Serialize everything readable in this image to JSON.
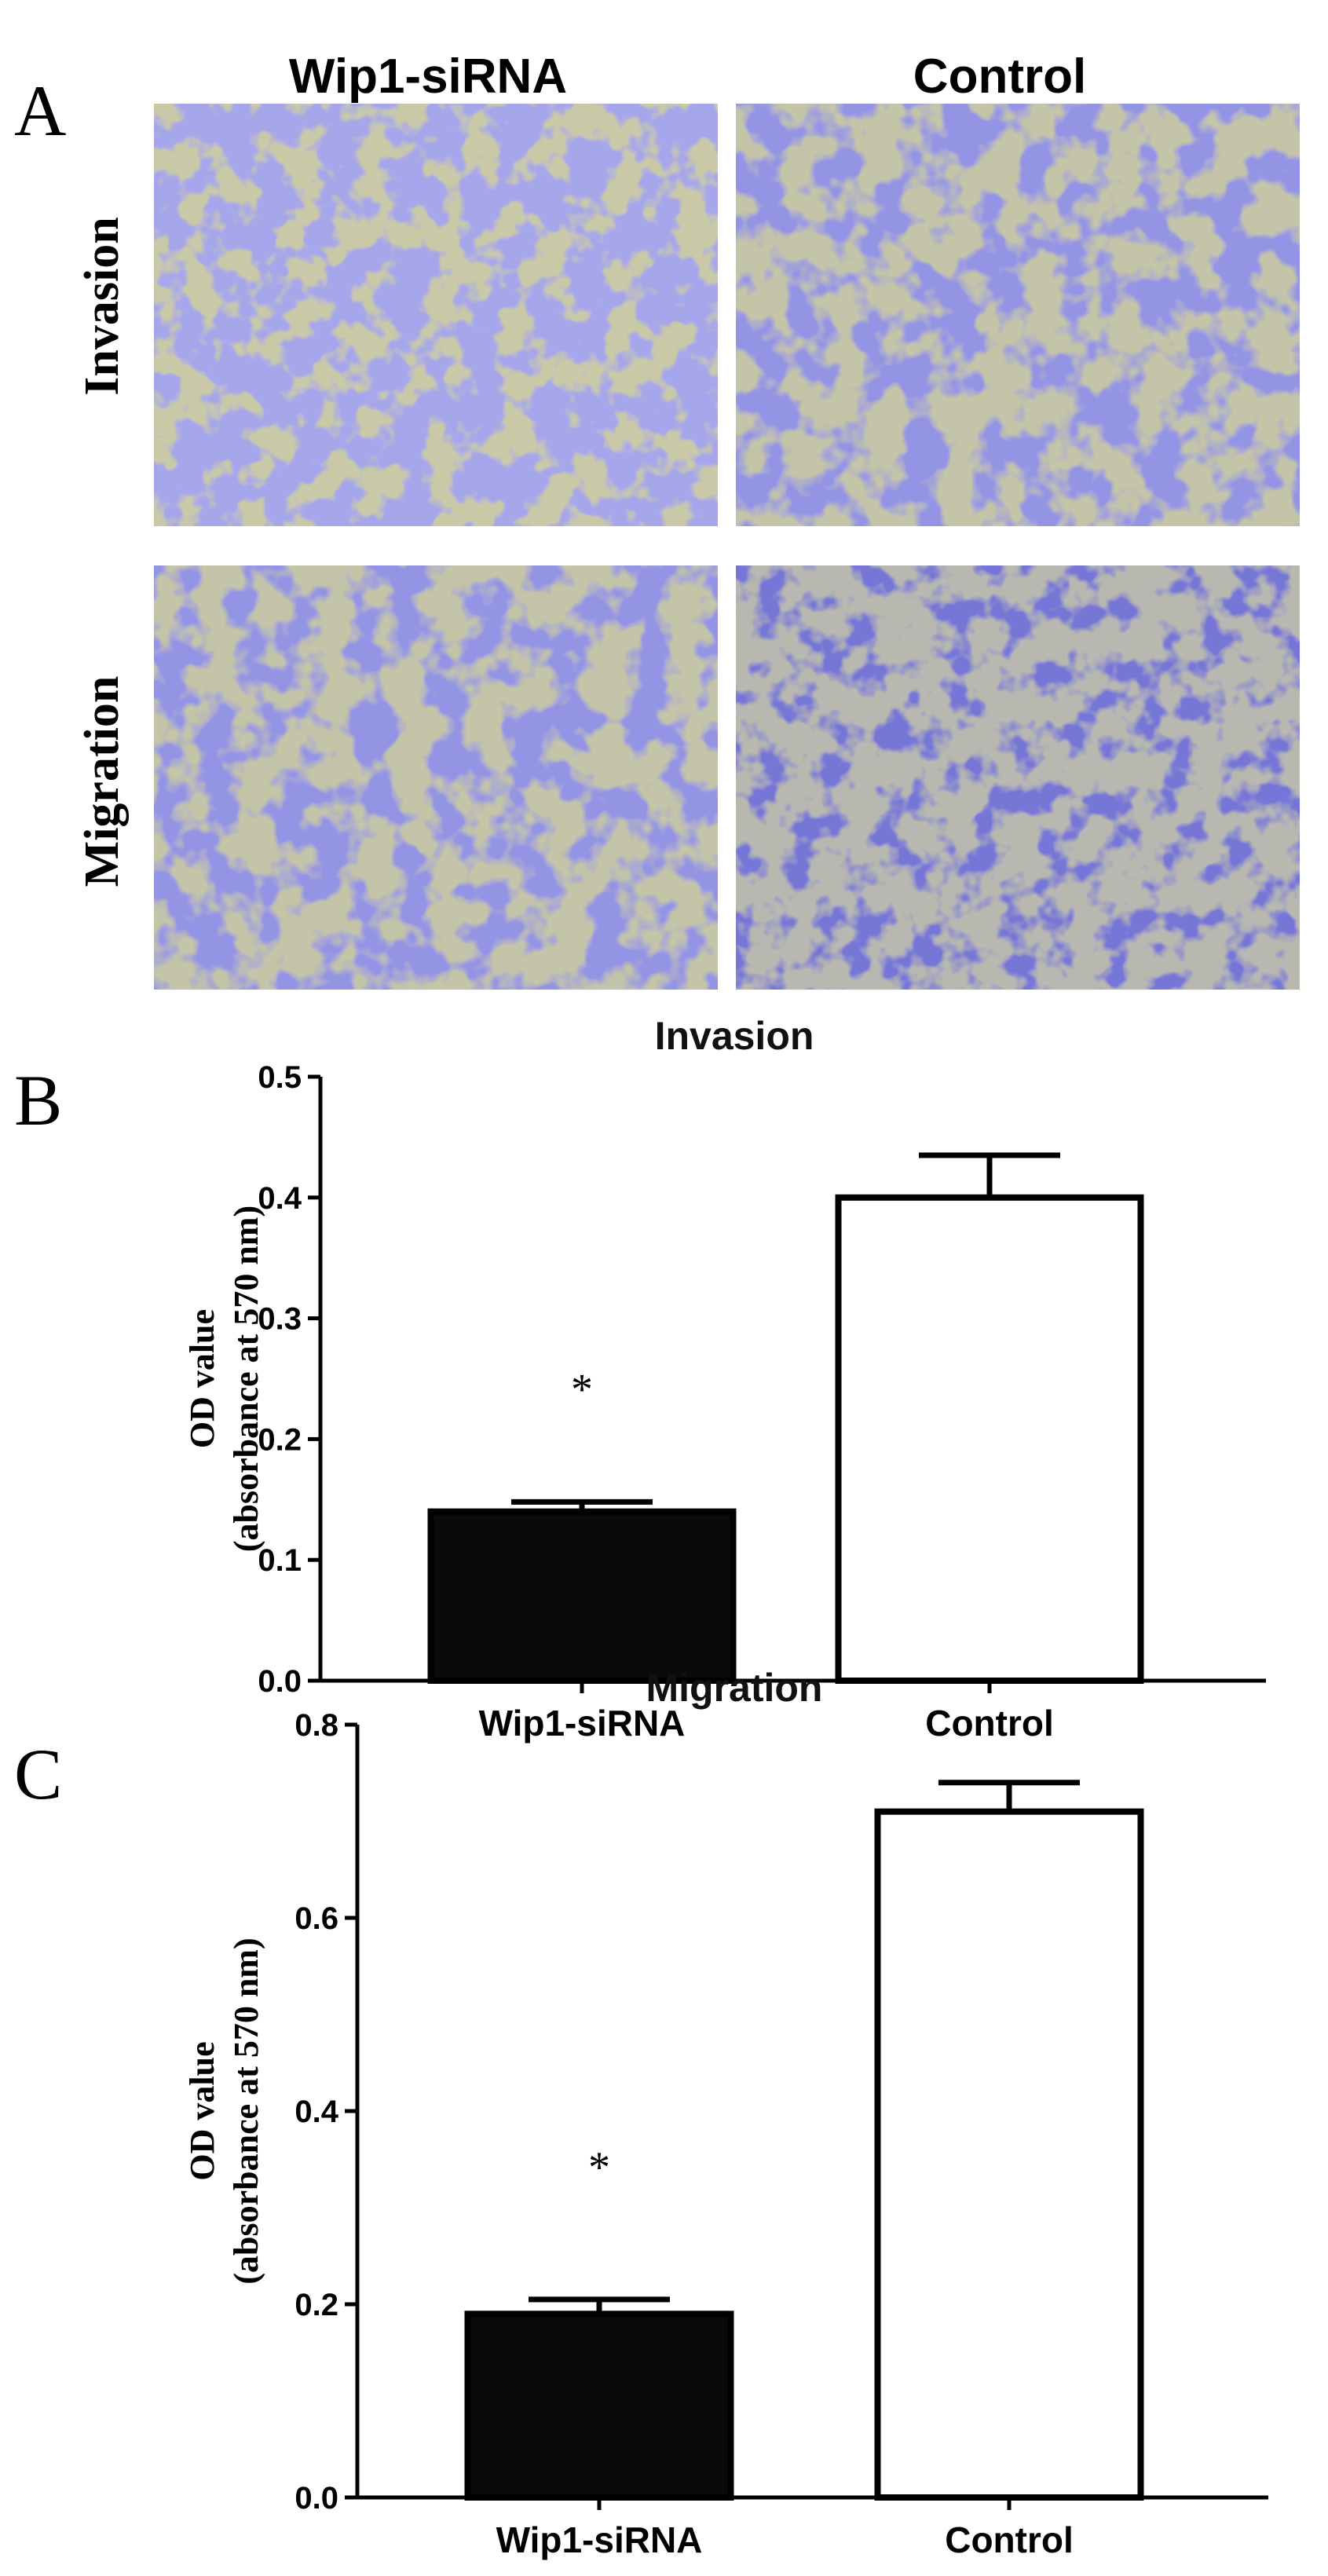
{
  "panels": {
    "a": "A",
    "b": "B",
    "c": "C"
  },
  "micrographs": {
    "columns": [
      "Wip1-siRNA",
      "Control"
    ],
    "rows": [
      "Invasion",
      "Migration"
    ]
  },
  "colors": {
    "background_cells": "#c9c9a8",
    "stain_light": "#6a6ad0",
    "stain_dark": "#2e2eb0",
    "bar_filled": "#0a0a0a",
    "bar_open": "#ffffff"
  },
  "chart_data": [
    {
      "type": "bar",
      "title": "Invasion",
      "ylabel": [
        "OD value",
        "(absorbance at 570 nm)"
      ],
      "categories": [
        "Wip1-siRNA",
        "Control"
      ],
      "values": [
        0.14,
        0.4
      ],
      "errors": [
        0.008,
        0.035
      ],
      "fills": [
        "#0a0a0a",
        "#ffffff"
      ],
      "significance": [
        "*",
        ""
      ],
      "ylim": [
        0,
        0.5
      ],
      "yticks": [
        0.0,
        0.1,
        0.2,
        0.3,
        0.4,
        0.5
      ],
      "ytick_labels": [
        "0.0",
        "0.1",
        "0.2",
        "0.3",
        "0.4",
        "0.5"
      ]
    },
    {
      "type": "bar",
      "title": "Migration",
      "ylabel": [
        "OD value",
        "(absorbance at 570 nm)"
      ],
      "categories": [
        "Wip1-siRNA",
        "Control"
      ],
      "values": [
        0.19,
        0.71
      ],
      "errors": [
        0.015,
        0.03
      ],
      "fills": [
        "#0a0a0a",
        "#ffffff"
      ],
      "significance": [
        "*",
        ""
      ],
      "ylim": [
        0,
        0.8
      ],
      "yticks": [
        0.0,
        0.2,
        0.4,
        0.6,
        0.8
      ],
      "ytick_labels": [
        "0.0",
        "0.2",
        "0.4",
        "0.6",
        "0.8"
      ]
    }
  ]
}
